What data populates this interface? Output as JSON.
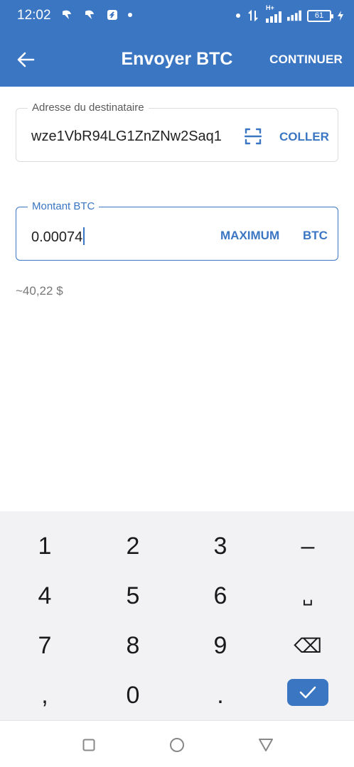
{
  "status_bar": {
    "time": "12:02",
    "network": "H+",
    "battery": "61"
  },
  "app_bar": {
    "title": "Envoyer BTC",
    "continue_label": "CONTINUER",
    "back_icon": "arrow-left-icon"
  },
  "recipient": {
    "label": "Adresse du destinataire",
    "value": "wze1VbR94LG1ZnZNw2Saq1",
    "scan_icon": "qr-scan-icon",
    "paste_label": "COLLER"
  },
  "amount": {
    "label": "Montant BTC",
    "value": "0.00074",
    "max_label": "MAXIMUM",
    "unit_label": "BTC"
  },
  "fiat_estimate": "~40,22 $",
  "keyboard": {
    "keys": [
      "1",
      "2",
      "3",
      "–",
      "4",
      "5",
      "6",
      "␣",
      "7",
      "8",
      "9",
      "⌫",
      ",",
      "0",
      "."
    ],
    "enter_icon": "check-icon"
  },
  "colors": {
    "primary": "#3b76c3",
    "keyboard_bg": "#f2f2f4"
  }
}
